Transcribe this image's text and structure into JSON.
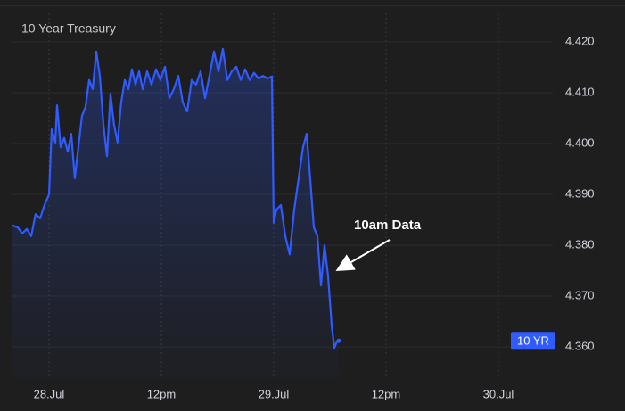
{
  "chart_data": {
    "type": "line",
    "title": "10 Year Treasury",
    "annotation": "10am Data",
    "x": [
      -3.9,
      -3.33,
      -2.86,
      -2.38,
      -1.9,
      -1.43,
      -0.95,
      -0.48,
      0,
      0.29,
      0.67,
      0.86,
      1.24,
      1.62,
      2.0,
      2.38,
      2.76,
      3.14,
      3.52,
      3.9,
      4.29,
      4.67,
      5.05,
      5.43,
      5.81,
      6.19,
      6.57,
      6.95,
      7.33,
      7.71,
      8.1,
      8.48,
      8.86,
      9.24,
      9.62,
      10.0,
      10.48,
      10.95,
      11.43,
      11.9,
      12.38,
      12.86,
      13.33,
      13.81,
      14.29,
      14.76,
      15.24,
      15.71,
      16.19,
      16.67,
      17.14,
      17.62,
      18.1,
      18.57,
      19.05,
      19.52,
      20.0,
      20.48,
      20.95,
      21.43,
      21.9,
      22.38,
      22.86,
      23.33,
      23.81,
      24.0,
      24.29,
      24.76,
      25.24,
      25.71,
      26.19,
      26.67,
      27.14,
      27.52,
      27.9,
      28.29,
      28.67,
      29.05,
      29.43,
      29.81,
      30.19,
      30.48,
      30.76,
      30.95
    ],
    "series": [
      {
        "name": "10 YR",
        "color": "#2f5bff",
        "values": [
          4.3839,
          4.3835,
          4.3823,
          4.3832,
          4.3818,
          4.3861,
          4.3853,
          4.3879,
          4.39,
          4.4028,
          4.4002,
          4.4075,
          4.3993,
          4.4011,
          4.3984,
          4.4019,
          4.3932,
          4.3993,
          4.4054,
          4.4072,
          4.4125,
          4.4107,
          4.4181,
          4.4133,
          4.4037,
          4.3975,
          4.4098,
          4.4037,
          4.4002,
          4.4081,
          4.4125,
          4.4107,
          4.4146,
          4.4116,
          4.4142,
          4.4107,
          4.4142,
          4.4116,
          4.4146,
          4.4125,
          4.4151,
          4.4089,
          4.4107,
          4.4133,
          4.4081,
          4.4063,
          4.4125,
          4.4116,
          4.4142,
          4.4089,
          4.4133,
          4.4181,
          4.4142,
          4.4186,
          4.4125,
          4.4142,
          4.4151,
          4.4125,
          4.4146,
          4.4125,
          4.4139,
          4.4128,
          4.4133,
          4.4128,
          4.4132,
          4.3844,
          4.387,
          4.3879,
          4.3818,
          4.3782,
          4.387,
          4.3932,
          4.3993,
          4.4019,
          4.3932,
          4.3835,
          4.3818,
          4.3721,
          4.38,
          4.3739,
          4.3642,
          4.3598,
          4.3611,
          4.3612
        ]
      }
    ],
    "xlim": [
      -3.9,
      53.81
    ],
    "xticks": [
      {
        "value": 0,
        "label": "28.Jul"
      },
      {
        "value": 12,
        "label": "12pm"
      },
      {
        "value": 24,
        "label": "29.Jul"
      },
      {
        "value": 36,
        "label": "12pm"
      },
      {
        "value": 48,
        "label": "30.Jul"
      }
    ],
    "ylim": [
      4.3537,
      4.4256
    ],
    "yticks": [
      {
        "value": 4.36,
        "label": "4.360"
      },
      {
        "value": 4.37,
        "label": "4.370"
      },
      {
        "value": 4.38,
        "label": "4.380"
      },
      {
        "value": 4.39,
        "label": "4.390"
      },
      {
        "value": 4.4,
        "label": "4.400"
      },
      {
        "value": 4.41,
        "label": "4.410"
      },
      {
        "value": 4.42,
        "label": "4.420"
      }
    ],
    "grid": true
  }
}
